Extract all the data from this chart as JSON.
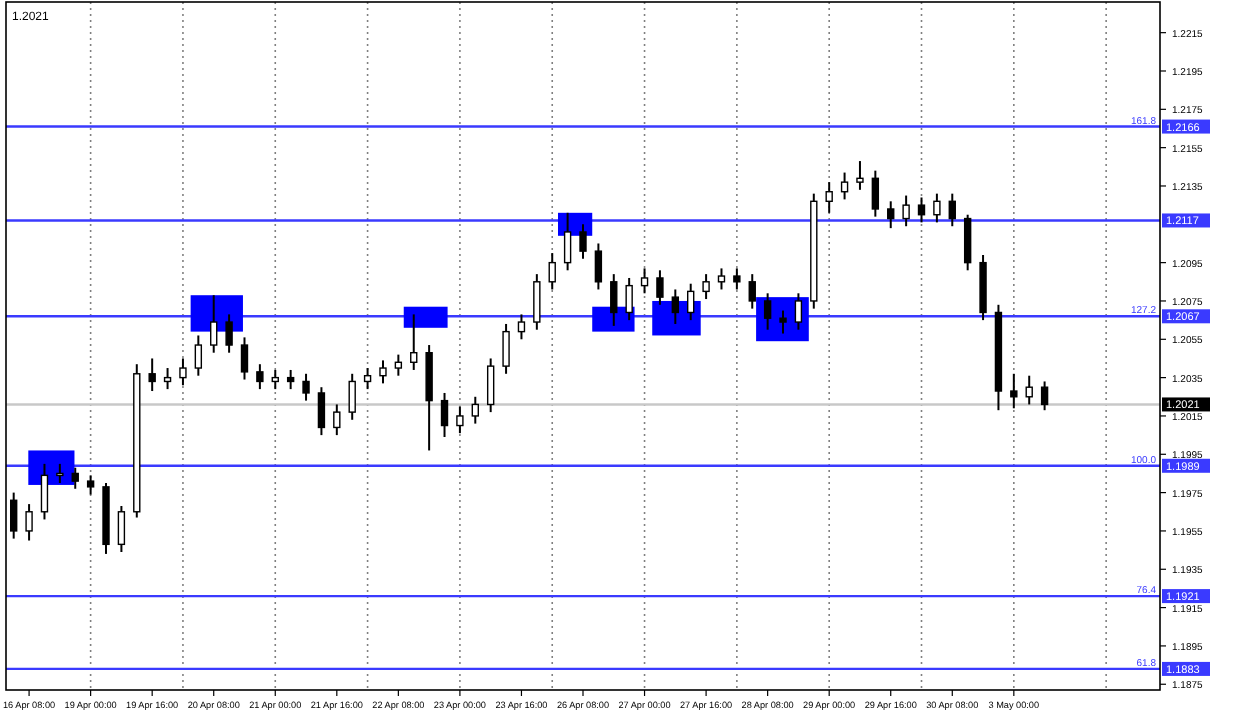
{
  "chart_data": {
    "type": "candlestick",
    "title": "1.2021",
    "categories": [
      null,
      "16 Apr 08:00",
      null,
      null,
      null,
      "19 Apr 00:00",
      null,
      null,
      null,
      "19 Apr 16:00",
      null,
      null,
      null,
      "20 Apr 08:00",
      null,
      null,
      null,
      "21 Apr 00:00",
      null,
      null,
      null,
      "21 Apr 16:00",
      null,
      null,
      null,
      "22 Apr 08:00",
      null,
      null,
      null,
      "23 Apr 00:00",
      null,
      null,
      null,
      "23 Apr 16:00",
      null,
      null,
      null,
      "26 Apr 08:00",
      null,
      null,
      null,
      "27 Apr 00:00",
      null,
      null,
      null,
      "27 Apr 16:00",
      null,
      null,
      null,
      "28 Apr 08:00",
      null,
      null,
      null,
      "29 Apr 00:00",
      null,
      null,
      null,
      "29 Apr 16:00",
      null,
      null,
      null,
      "30 Apr 08:00",
      null,
      null,
      null,
      "3 May 00:00",
      null,
      null,
      null,
      null,
      null,
      null,
      null,
      null,
      null
    ],
    "ohlc": [
      [
        1.1971,
        1.1975,
        1.1951,
        1.1955
      ],
      [
        1.1955,
        1.1969,
        1.195,
        1.1965
      ],
      [
        1.1965,
        1.199,
        1.1961,
        1.1984
      ],
      [
        1.1984,
        1.199,
        1.198,
        1.1985
      ],
      [
        1.1985,
        1.1988,
        1.1977,
        1.1981
      ],
      [
        1.1981,
        1.1984,
        1.1974,
        1.1978
      ],
      [
        1.1978,
        1.198,
        1.1943,
        1.1948
      ],
      [
        1.1948,
        1.1968,
        1.1944,
        1.1965
      ],
      [
        1.1965,
        1.2042,
        1.1962,
        1.2037
      ],
      [
        1.2037,
        1.2045,
        1.2028,
        1.2033
      ],
      [
        1.2033,
        1.204,
        1.2029,
        1.2035
      ],
      [
        1.2035,
        1.2045,
        1.2031,
        1.204
      ],
      [
        1.204,
        1.2057,
        1.2036,
        1.2052
      ],
      [
        1.2052,
        1.2078,
        1.2048,
        1.2064
      ],
      [
        1.2064,
        1.2068,
        1.2048,
        1.2052
      ],
      [
        1.2052,
        1.2056,
        1.2034,
        1.2038
      ],
      [
        1.2038,
        1.2042,
        1.2029,
        1.2033
      ],
      [
        1.2033,
        1.2039,
        1.2029,
        1.2035
      ],
      [
        1.2035,
        1.2039,
        1.2029,
        1.2033
      ],
      [
        1.2033,
        1.2037,
        1.2023,
        1.2027
      ],
      [
        1.2027,
        1.203,
        1.2005,
        1.2009
      ],
      [
        1.2009,
        1.2021,
        1.2005,
        1.2017
      ],
      [
        1.2017,
        1.2037,
        1.2013,
        1.2033
      ],
      [
        1.2033,
        1.204,
        1.2029,
        1.2036
      ],
      [
        1.2036,
        1.2044,
        1.2032,
        1.204
      ],
      [
        1.204,
        1.2047,
        1.2036,
        1.2043
      ],
      [
        1.2043,
        1.2068,
        1.2039,
        1.2048
      ],
      [
        1.2048,
        1.2052,
        1.1997,
        1.2023
      ],
      [
        1.2023,
        1.2027,
        1.2004,
        1.201
      ],
      [
        1.201,
        1.202,
        1.2006,
        1.2015
      ],
      [
        1.2015,
        1.2025,
        1.2011,
        1.2021
      ],
      [
        1.2021,
        1.2045,
        1.2017,
        1.2041
      ],
      [
        1.2041,
        1.2063,
        1.2037,
        1.2059
      ],
      [
        1.2059,
        1.2068,
        1.2055,
        1.2064
      ],
      [
        1.2064,
        1.2089,
        1.206,
        1.2085
      ],
      [
        1.2085,
        1.21,
        1.2081,
        1.2095
      ],
      [
        1.2095,
        1.2121,
        1.2091,
        1.2111
      ],
      [
        1.2111,
        1.2115,
        1.2097,
        1.2101
      ],
      [
        1.2101,
        1.2105,
        1.2081,
        1.2085
      ],
      [
        1.2085,
        1.2089,
        1.2062,
        1.2069
      ],
      [
        1.2069,
        1.2087,
        1.2065,
        1.2083
      ],
      [
        1.2083,
        1.2092,
        1.2079,
        1.2087
      ],
      [
        1.2087,
        1.2091,
        1.2073,
        1.2077
      ],
      [
        1.2077,
        1.2081,
        1.2063,
        1.2069
      ],
      [
        1.2069,
        1.2084,
        1.2065,
        1.208
      ],
      [
        1.208,
        1.2089,
        1.2076,
        1.2085
      ],
      [
        1.2085,
        1.2092,
        1.2081,
        1.2088
      ],
      [
        1.2088,
        1.2092,
        1.2081,
        1.2085
      ],
      [
        1.2085,
        1.2089,
        1.2071,
        1.2075
      ],
      [
        1.2075,
        1.2079,
        1.206,
        1.2066
      ],
      [
        1.2066,
        1.207,
        1.2058,
        1.2064
      ],
      [
        1.2064,
        1.2079,
        1.206,
        1.2075
      ],
      [
        1.2075,
        1.2131,
        1.2071,
        1.2127
      ],
      [
        1.2127,
        1.2137,
        1.2121,
        1.2132
      ],
      [
        1.2132,
        1.2142,
        1.2128,
        1.2137
      ],
      [
        1.2137,
        1.2148,
        1.2133,
        1.2139
      ],
      [
        1.2139,
        1.2143,
        1.2119,
        1.2123
      ],
      [
        1.2123,
        1.2127,
        1.2113,
        1.2118
      ],
      [
        1.2118,
        1.213,
        1.2114,
        1.2125
      ],
      [
        1.2125,
        1.2129,
        1.2116,
        1.212
      ],
      [
        1.212,
        1.2131,
        1.2116,
        1.2127
      ],
      [
        1.2127,
        1.2131,
        1.2114,
        1.2118
      ],
      [
        1.2118,
        1.212,
        1.2091,
        1.2095
      ],
      [
        1.2095,
        1.2099,
        1.2065,
        1.2069
      ],
      [
        1.2069,
        1.2073,
        1.2018,
        1.2028
      ],
      [
        1.2028,
        1.2037,
        1.2019,
        1.2025
      ],
      [
        1.2025,
        1.2036,
        1.2021,
        1.203
      ],
      [
        1.203,
        1.2033,
        1.2018,
        1.2021
      ],
      null,
      null,
      null,
      null,
      null,
      null,
      null
    ],
    "color": "#000000",
    "grid": "x",
    "ylim": [
      1.1872,
      1.2231
    ],
    "yticks": [
      {
        "value": 1.2215,
        "label": "1.2215"
      },
      {
        "value": 1.2195,
        "label": "1.2195"
      },
      {
        "value": 1.2175,
        "label": "1.2175"
      },
      {
        "value": 1.2155,
        "label": "1.2155"
      },
      {
        "value": 1.2135,
        "label": "1.2135"
      },
      {
        "value": 1.2095,
        "label": "1.2095"
      },
      {
        "value": 1.2075,
        "label": "1.2075"
      },
      {
        "value": 1.2055,
        "label": "1.2055"
      },
      {
        "value": 1.2035,
        "label": "1.2035"
      },
      {
        "value": 1.2015,
        "label": "1.2015"
      },
      {
        "value": 1.1995,
        "label": "1.1995"
      },
      {
        "value": 1.1975,
        "label": "1.1975"
      },
      {
        "value": 1.1955,
        "label": "1.1955"
      },
      {
        "value": 1.1935,
        "label": "1.1935"
      },
      {
        "value": 1.1915,
        "label": "1.1915"
      },
      {
        "value": 1.1895,
        "label": "1.1895"
      },
      {
        "value": 1.1875,
        "label": "1.1875"
      }
    ],
    "ref_lines": [
      {
        "axis": "y",
        "value": 1.2166,
        "label": "1.2166",
        "color": "#3a3aff"
      },
      {
        "axis": "y",
        "value": 1.2117,
        "label": "1.2117",
        "color": "#3a3aff"
      },
      {
        "axis": "y",
        "value": 1.2067,
        "label": "1.2067",
        "color": "#3a3aff"
      },
      {
        "axis": "y",
        "value": 1.1989,
        "label": "1.1989",
        "color": "#3a3aff"
      },
      {
        "axis": "y",
        "value": 1.1921,
        "label": "1.1921",
        "color": "#3a3aff"
      },
      {
        "axis": "y",
        "value": 1.1883,
        "label": "1.1883",
        "color": "#3a3aff"
      },
      {
        "axis": "y",
        "value": 1.2021,
        "label": "1.2021",
        "color": "#c8c8c8"
      }
    ],
    "annotations": [
      {
        "text": "161.8",
        "y": 1.2166
      },
      {
        "text": "127.2",
        "y": 1.2067
      },
      {
        "text": "100.0",
        "y": 1.1989
      },
      {
        "text": "76.4",
        "y": 1.1921
      },
      {
        "text": "61.8",
        "y": 1.1883
      }
    ]
  }
}
